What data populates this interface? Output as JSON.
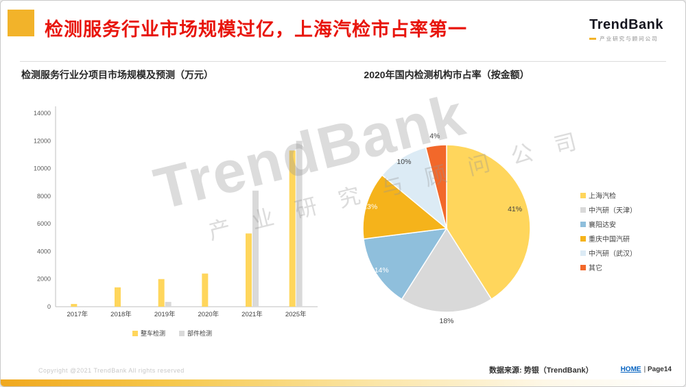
{
  "header": {
    "title": "检测服务行业市场规模过亿，上海汽检市占率第一",
    "logo": {
      "name": "TrendBank",
      "subtitle": "产业研究与顾问公司"
    }
  },
  "watermark": {
    "line1": "TrendBank",
    "line2": "产 业 研 究 与 顾 问 公 司"
  },
  "chart_data": [
    {
      "type": "bar",
      "title": "检测服务行业分项目市场规模及预测（万元）",
      "categories": [
        "2017年",
        "2018年",
        "2019年",
        "2020年",
        "2021年",
        "2025年"
      ],
      "series": [
        {
          "name": "整车检测",
          "color": "#FFD65C",
          "values": [
            200,
            1400,
            2000,
            2400,
            5300,
            11300
          ]
        },
        {
          "name": "部件检测",
          "color": "#D9D9D9",
          "values": [
            0,
            0,
            350,
            0,
            8400,
            12000
          ]
        }
      ],
      "xlabel": "",
      "ylabel": "",
      "ylim": [
        0,
        14000
      ],
      "ytick_step": 2000,
      "grid": false,
      "legend_position": "bottom"
    },
    {
      "type": "pie",
      "title": "2020年国内检测机构市占率（按金额）",
      "labels": [
        "上海汽检",
        "中汽研（天津）",
        "襄阳达安",
        "重庆中国汽研",
        "中汽研（武汉）",
        "其它"
      ],
      "values": [
        41,
        18,
        14,
        13,
        10,
        4
      ],
      "unit": "%",
      "colors": [
        "#FFD65C",
        "#D9D9D9",
        "#8FBFDC",
        "#F5B31B",
        "#DCEBF5",
        "#F2682A"
      ],
      "label_colors": [
        "#404040",
        "#404040",
        "#ffffff",
        "#ffffff",
        "#404040",
        "#404040"
      ],
      "label_radius": [
        0.85,
        1.1,
        0.92,
        0.95,
        0.95,
        1.12
      ],
      "legend_position": "right"
    }
  ],
  "footer": {
    "copyright": "Copyright @2021 TrendBank All rights reserved",
    "source": "数据来源: 势银（TrendBank）",
    "home": "HOME",
    "separator": "|",
    "page": "Page14"
  }
}
